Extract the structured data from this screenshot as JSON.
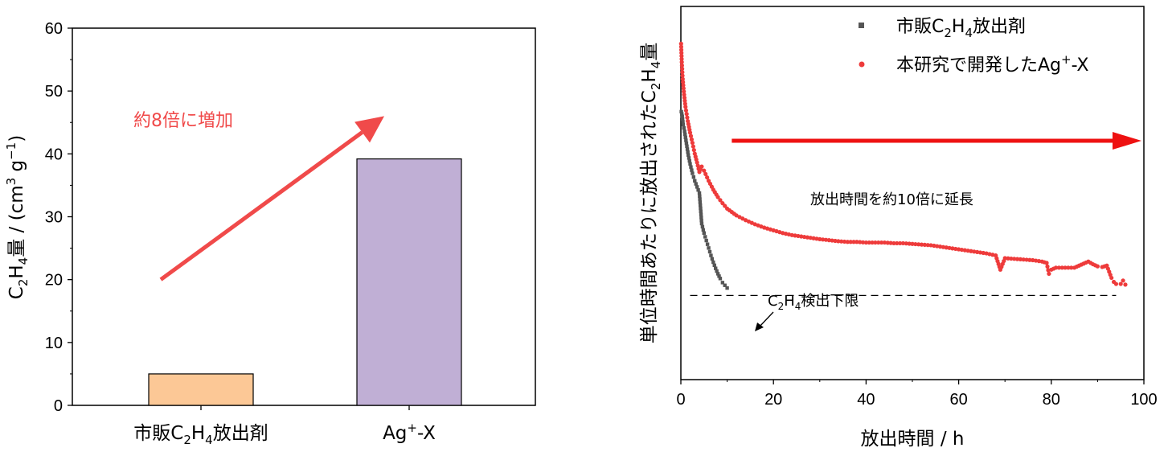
{
  "chart_data": [
    {
      "type": "bar",
      "categories": [
        "市販C2H4放出剤",
        "Ag+-X"
      ],
      "values": [
        5,
        39.2
      ],
      "colors": [
        "#fcc896",
        "#c0afd5"
      ],
      "ylabel": "C2H4量 / (cm3 g−1)",
      "ylim": [
        0,
        60
      ],
      "yticks": [
        0,
        10,
        20,
        30,
        40,
        50,
        60
      ],
      "annotations": [
        {
          "text": "約8倍に増加",
          "color": "#f04a4a"
        }
      ],
      "arrow": {
        "from": [
          0.5,
          20
        ],
        "to": [
          1.5,
          46
        ],
        "color": "#f04a4a"
      }
    },
    {
      "type": "scatter",
      "xlabel": "放出時間 / h",
      "ylabel": "単位時間あたりに放出されたC2H4量",
      "xlim": [
        0,
        100
      ],
      "xticks": [
        0,
        20,
        40,
        60,
        80,
        100
      ],
      "yticks_labeled": false,
      "legend_position": "top-right",
      "series": [
        {
          "name": "市販C2H4放出剤",
          "color": "#555555",
          "marker": "square",
          "points": [
            [
              0.1,
              39.5
            ],
            [
              0.3,
              38.8
            ],
            [
              0.5,
              37.6
            ],
            [
              0.8,
              36.6
            ],
            [
              1.0,
              35.7
            ],
            [
              1.3,
              34.4
            ],
            [
              1.6,
              33.1
            ],
            [
              2.0,
              31.8
            ],
            [
              2.5,
              30.4
            ],
            [
              3.0,
              29.3
            ],
            [
              3.5,
              28.4
            ],
            [
              4.0,
              27.5
            ],
            [
              4.5,
              23.0
            ],
            [
              5.0,
              21.6
            ],
            [
              5.5,
              20.5
            ],
            [
              6.0,
              19.4
            ],
            [
              6.5,
              18.3
            ],
            [
              7.0,
              17.3
            ],
            [
              7.5,
              16.4
            ],
            [
              8.0,
              15.6
            ],
            [
              8.5,
              14.9
            ],
            [
              9.0,
              14.3
            ],
            [
              9.5,
              13.9
            ],
            [
              10.0,
              13.5
            ]
          ]
        },
        {
          "name": "本研究で開発したAg+-X",
          "color": "#ee3b3b",
          "marker": "circle",
          "points": [
            [
              0.05,
              49.5
            ],
            [
              0.2,
              46.8
            ],
            [
              0.4,
              44.3
            ],
            [
              0.7,
              42.0
            ],
            [
              1.0,
              40.2
            ],
            [
              1.5,
              38.1
            ],
            [
              2.0,
              36.4
            ],
            [
              2.5,
              34.9
            ],
            [
              3.0,
              33.3
            ],
            [
              3.5,
              32.0
            ],
            [
              4.0,
              30.6
            ],
            [
              4.5,
              31.4
            ],
            [
              5.0,
              30.8
            ],
            [
              6.0,
              29.3
            ],
            [
              7.0,
              28.0
            ],
            [
              8.0,
              26.9
            ],
            [
              9.0,
              26.0
            ],
            [
              10.0,
              25.2
            ],
            [
              12.0,
              24.2
            ],
            [
              14.0,
              23.5
            ],
            [
              16.0,
              22.9
            ],
            [
              18.0,
              22.4
            ],
            [
              20.0,
              22.0
            ],
            [
              22.0,
              21.6
            ],
            [
              24.0,
              21.3
            ],
            [
              26.0,
              21.1
            ],
            [
              28.0,
              20.9
            ],
            [
              30.0,
              20.7
            ],
            [
              32.0,
              20.55
            ],
            [
              34.0,
              20.4
            ],
            [
              36.0,
              20.3
            ],
            [
              38.0,
              20.3
            ],
            [
              40.0,
              20.2
            ],
            [
              42.0,
              20.2
            ],
            [
              44.0,
              20.2
            ],
            [
              46.0,
              20.1
            ],
            [
              48.0,
              20.1
            ],
            [
              50.0,
              20.0
            ],
            [
              52.0,
              19.9
            ],
            [
              54.0,
              19.8
            ],
            [
              56.0,
              19.6
            ],
            [
              58.0,
              19.4
            ],
            [
              60.0,
              19.2
            ],
            [
              62.0,
              19.0
            ],
            [
              64.0,
              18.8
            ],
            [
              66.0,
              18.6
            ],
            [
              68.0,
              18.3
            ],
            [
              69.0,
              16.2
            ],
            [
              70.0,
              17.9
            ],
            [
              72.0,
              17.8
            ],
            [
              74.0,
              17.7
            ],
            [
              76.0,
              17.6
            ],
            [
              78.0,
              17.4
            ],
            [
              79.0,
              17.2
            ],
            [
              79.5,
              15.6
            ],
            [
              80.0,
              16.2
            ],
            [
              81.0,
              16.5
            ],
            [
              83.0,
              16.5
            ],
            [
              85.0,
              16.5
            ],
            [
              86.0,
              16.8
            ],
            [
              87.0,
              17.1
            ],
            [
              88.0,
              17.4
            ],
            [
              89.0,
              17.0
            ],
            [
              90.0,
              16.7
            ],
            [
              91.0,
              16.6
            ],
            [
              92.0,
              16.8
            ],
            [
              93.0,
              15.0
            ],
            [
              93.5,
              14.4
            ],
            [
              94.0,
              14.1
            ],
            [
              95.0,
              14.1
            ],
            [
              95.5,
              14.6
            ],
            [
              96.0,
              14.0
            ]
          ]
        }
      ],
      "detection_limit": {
        "y": 12.4,
        "label": "C2H4検出下限",
        "x_start": 2,
        "x_end": 94
      },
      "annotations": [
        {
          "text": "放出時間を約10倍に延長",
          "color": "#000000"
        }
      ],
      "arrow": {
        "from": [
          11,
          35.2
        ],
        "to": [
          98,
          35.2
        ],
        "color": "#ee1111"
      }
    }
  ]
}
